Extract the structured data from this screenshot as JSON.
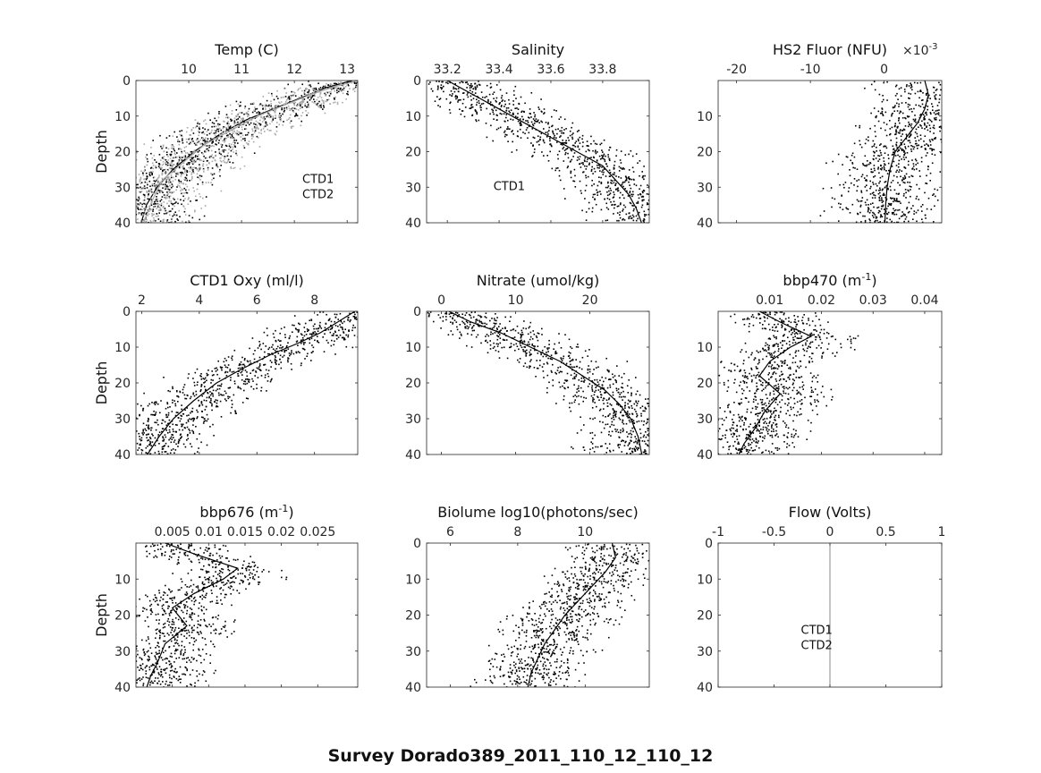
{
  "figure": {
    "suptitle": "Survey Dorado389_2011_110_12_110_12"
  },
  "chart_data": [
    {
      "type": "scatter",
      "id": "temp",
      "title": "Temp (C)",
      "title_sup": "",
      "title_post": "",
      "ylabel": "Depth",
      "xlim": [
        9.0,
        13.2
      ],
      "ylim": [
        0,
        40
      ],
      "xticks": [
        "10",
        "11",
        "12",
        "13"
      ],
      "xtick_values": [
        10,
        11,
        12,
        13
      ],
      "yticks": [
        "0",
        "10",
        "20",
        "30",
        "40"
      ],
      "ytick_values": [
        0,
        10,
        20,
        30,
        40
      ],
      "exponent": "",
      "exponent_sup": "",
      "legend": [
        "CTD1",
        "CTD2"
      ],
      "series": [
        {
          "name": "CTD1",
          "color": "#000000",
          "x": [
            13.1,
            12.6,
            12.1,
            11.6,
            11.1,
            10.6,
            10.1,
            9.7,
            9.4,
            9.2,
            9.1
          ],
          "y": [
            0,
            2,
            5,
            8,
            11,
            15,
            20,
            25,
            30,
            35,
            40
          ]
        },
        {
          "name": "CTD2",
          "color": "#aaaaaa",
          "x": [
            13.2,
            12.7,
            12.3,
            11.8,
            11.3,
            10.8,
            10.3,
            9.9,
            9.5,
            9.3,
            9.15
          ],
          "y": [
            0,
            2,
            4,
            7,
            10,
            14,
            18,
            23,
            28,
            34,
            40
          ]
        }
      ]
    },
    {
      "type": "scatter",
      "id": "salinity",
      "title": "Salinity",
      "title_sup": "",
      "title_post": "",
      "ylabel": "",
      "xlim": [
        33.12,
        33.98
      ],
      "ylim": [
        0,
        40
      ],
      "xticks": [
        "33.2",
        "33.4",
        "33.6",
        "33.8"
      ],
      "xtick_values": [
        33.2,
        33.4,
        33.6,
        33.8
      ],
      "yticks": [
        "0",
        "10",
        "20",
        "30",
        "40"
      ],
      "ytick_values": [
        0,
        10,
        20,
        30,
        40
      ],
      "exponent": "",
      "exponent_sup": "",
      "legend": [
        "CTD1"
      ],
      "series": [
        {
          "name": "CTD1",
          "color": "#000000",
          "x": [
            33.2,
            33.3,
            33.4,
            33.5,
            33.6,
            33.7,
            33.8,
            33.85,
            33.9,
            33.93,
            33.95
          ],
          "y": [
            0,
            4,
            8,
            12,
            16,
            20,
            24,
            28,
            32,
            36,
            40
          ]
        }
      ]
    },
    {
      "type": "scatter",
      "id": "hs2fluor",
      "title": "HS2 Fluor (NFU)",
      "title_sup": "",
      "title_post": "",
      "ylabel": "",
      "xlim": [
        -22.5,
        7.8
      ],
      "ylim": [
        0,
        40
      ],
      "xticks": [
        "-20",
        "-10",
        "0"
      ],
      "xtick_values": [
        -20,
        -10,
        0
      ],
      "yticks": [
        "10",
        "20",
        "30",
        "40"
      ],
      "ytick_values": [
        10,
        20,
        30,
        40
      ],
      "exponent": "×10",
      "exponent_sup": "-3",
      "legend": [],
      "series": [
        {
          "name": "",
          "color": "#000000",
          "x": [
            5.5,
            6.0,
            5.5,
            4.5,
            3.0,
            1.5,
            0.8,
            0.4,
            0.2,
            0.1
          ],
          "y": [
            0,
            4,
            8,
            12,
            16,
            20,
            25,
            30,
            35,
            40
          ]
        }
      ]
    },
    {
      "type": "scatter",
      "id": "oxy",
      "title": "CTD1 Oxy (ml/l)",
      "title_sup": "",
      "title_post": "",
      "ylabel": "Depth",
      "xlim": [
        1.8,
        9.5
      ],
      "ylim": [
        0,
        40
      ],
      "xticks": [
        "2",
        "4",
        "6",
        "8"
      ],
      "xtick_values": [
        2,
        4,
        6,
        8
      ],
      "yticks": [
        "0",
        "10",
        "20",
        "30",
        "40"
      ],
      "ytick_values": [
        0,
        10,
        20,
        30,
        40
      ],
      "exponent": "",
      "exponent_sup": "",
      "legend": [],
      "series": [
        {
          "name": "",
          "color": "#000000",
          "x": [
            9.4,
            8.8,
            8.2,
            7.4,
            6.5,
            5.5,
            4.6,
            3.8,
            3.1,
            2.6,
            2.2
          ],
          "y": [
            0,
            3,
            6,
            9,
            12,
            16,
            20,
            25,
            30,
            35,
            40
          ]
        }
      ]
    },
    {
      "type": "scatter",
      "id": "nitrate",
      "title": "Nitrate (umol/kg)",
      "title_sup": "",
      "title_post": "",
      "ylabel": "",
      "xlim": [
        -2,
        28
      ],
      "ylim": [
        0,
        40
      ],
      "xticks": [
        "0",
        "10",
        "20"
      ],
      "xtick_values": [
        0,
        10,
        20
      ],
      "yticks": [
        "0",
        "10",
        "20",
        "30",
        "40"
      ],
      "ytick_values": [
        0,
        10,
        20,
        30,
        40
      ],
      "exponent": "",
      "exponent_sup": "",
      "legend": [],
      "series": [
        {
          "name": "",
          "color": "#000000",
          "x": [
            1,
            4,
            8,
            12,
            16,
            19,
            22,
            24,
            25.5,
            26.5,
            27
          ],
          "y": [
            0,
            3,
            6,
            10,
            14,
            18,
            22,
            26,
            30,
            35,
            40
          ]
        }
      ]
    },
    {
      "type": "scatter",
      "id": "bbp470",
      "title": "bbp470 (m",
      "title_sup": "-1",
      "title_post": ")",
      "ylabel": "",
      "xlim": [
        0.0,
        0.0433
      ],
      "ylim": [
        0,
        40
      ],
      "xticks": [
        "0.01",
        "0.02",
        "0.03",
        "0.04"
      ],
      "xtick_values": [
        0.01,
        0.02,
        0.03,
        0.04
      ],
      "yticks": [
        "10",
        "20",
        "30",
        "40"
      ],
      "ytick_values": [
        10,
        20,
        30,
        40
      ],
      "exponent": "",
      "exponent_sup": "",
      "legend": [],
      "series": [
        {
          "name": "",
          "color": "#000000",
          "x": [
            0.008,
            0.012,
            0.018,
            0.014,
            0.01,
            0.008,
            0.012,
            0.009,
            0.007,
            0.005,
            0.004
          ],
          "y": [
            0,
            3,
            7,
            10,
            14,
            18,
            23,
            28,
            33,
            37,
            40
          ]
        }
      ]
    },
    {
      "type": "scatter",
      "id": "bbp676",
      "title": "bbp676 (m",
      "title_sup": "-1",
      "title_post": ")",
      "ylabel": "Depth",
      "xlim": [
        0.0,
        0.0305
      ],
      "ylim": [
        0,
        40
      ],
      "xticks": [
        "0.005",
        "0.01",
        "0.015",
        "0.02",
        "0.025"
      ],
      "xtick_values": [
        0.005,
        0.01,
        0.015,
        0.02,
        0.025
      ],
      "yticks": [
        "10",
        "20",
        "30",
        "40"
      ],
      "ytick_values": [
        10,
        20,
        30,
        40
      ],
      "exponent": "",
      "exponent_sup": "",
      "legend": [],
      "series": [
        {
          "name": "",
          "color": "#000000",
          "x": [
            0.004,
            0.008,
            0.014,
            0.012,
            0.008,
            0.005,
            0.007,
            0.004,
            0.003,
            0.002,
            0.0015
          ],
          "y": [
            0,
            3,
            7,
            10,
            14,
            18,
            23,
            28,
            33,
            37,
            40
          ]
        }
      ]
    },
    {
      "type": "scatter",
      "id": "biolume",
      "title": "Biolume log10(photons/sec)",
      "title_sup": "",
      "title_post": "",
      "ylabel": "",
      "xlim": [
        5.3,
        11.9
      ],
      "ylim": [
        0,
        40
      ],
      "xticks": [
        "6",
        "8",
        "10"
      ],
      "xtick_values": [
        6,
        8,
        10
      ],
      "yticks": [
        "0",
        "10",
        "20",
        "30",
        "40"
      ],
      "ytick_values": [
        0,
        10,
        20,
        30,
        40
      ],
      "exponent": "",
      "exponent_sup": "",
      "legend": [],
      "series": [
        {
          "name": "",
          "color": "#000000",
          "x": [
            10.8,
            10.9,
            10.6,
            10.2,
            9.8,
            9.4,
            9.1,
            8.8,
            8.6,
            8.4,
            8.3
          ],
          "y": [
            0,
            4,
            8,
            12,
            16,
            20,
            24,
            28,
            32,
            36,
            40
          ]
        }
      ]
    },
    {
      "type": "scatter",
      "id": "flow",
      "title": "Flow (Volts)",
      "title_sup": "",
      "title_post": "",
      "ylabel": "",
      "xlim": [
        -1,
        1
      ],
      "ylim": [
        0,
        40
      ],
      "xticks": [
        "-1",
        "-0.5",
        "0",
        "0.5",
        "1"
      ],
      "xtick_values": [
        -1,
        -0.5,
        0,
        0.5,
        1
      ],
      "yticks": [
        "0",
        "10",
        "20",
        "30",
        "40"
      ],
      "ytick_values": [
        0,
        10,
        20,
        30,
        40
      ],
      "exponent": "",
      "exponent_sup": "",
      "legend": [
        "CTD1",
        "CTD2"
      ],
      "series": [
        {
          "name": "",
          "color": "#888888",
          "x": [
            0,
            0,
            0,
            0,
            0
          ],
          "y": [
            0,
            10,
            20,
            30,
            40
          ]
        }
      ]
    }
  ]
}
